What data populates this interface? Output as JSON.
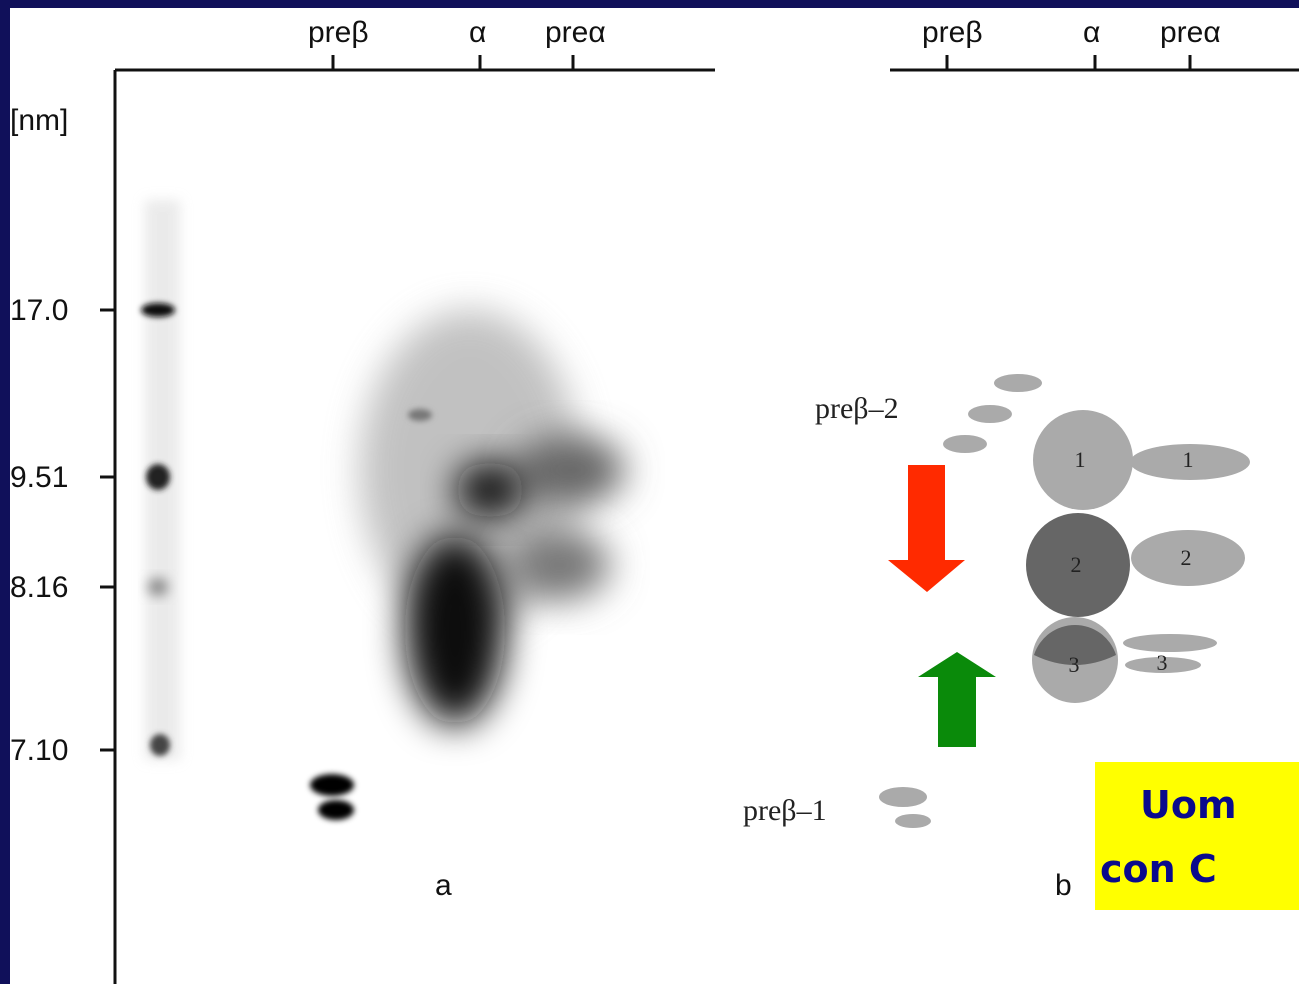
{
  "panel_a": {
    "top_labels": [
      "preβ",
      "α",
      "preα"
    ],
    "unit": "[nm]",
    "y_labels": [
      "17.0",
      "9.51",
      "8.16",
      "7.10"
    ],
    "label": "a"
  },
  "panel_b": {
    "top_labels": [
      "preβ",
      "α",
      "preα"
    ],
    "spot_labels": [
      "preβ–2",
      "preβ–1"
    ],
    "circle_numbers": [
      "1",
      "2",
      "3"
    ],
    "side_numbers": [
      "1",
      "2",
      "3"
    ],
    "label": "b"
  },
  "callout": {
    "lines": [
      "Uom",
      "con C"
    ]
  }
}
